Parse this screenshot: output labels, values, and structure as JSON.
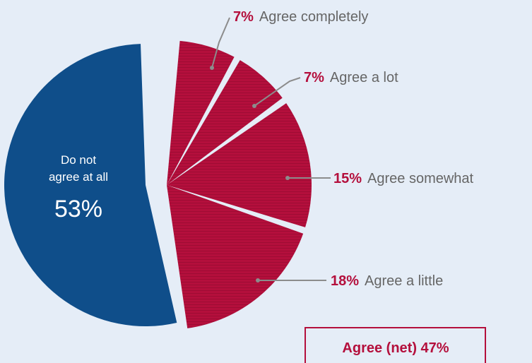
{
  "chart_data": {
    "type": "pie",
    "slices": [
      {
        "label": "Do not agree at all",
        "label_line1": "Do not",
        "label_line2": "agree at all",
        "value": 53,
        "value_text": "53%",
        "color": "#0f4e8a"
      },
      {
        "label": "Agree completely",
        "value": 7,
        "value_text": "7%",
        "color": "#b40f3c"
      },
      {
        "label": "Agree a lot",
        "value": 7,
        "value_text": "7%",
        "color": "#b40f3c"
      },
      {
        "label": "Agree somewhat",
        "value": 15,
        "value_text": "15%",
        "color": "#b40f3c"
      },
      {
        "label": "Agree a little",
        "value": 18,
        "value_text": "18%",
        "color": "#b40f3c"
      }
    ],
    "net": {
      "text": "Agree (net) 47%",
      "label": "Agree (net)",
      "value": 47
    }
  },
  "colors": {
    "background": "#e5edf7",
    "disagree": "#0f4e8a",
    "agree": "#b40f3c",
    "agree_stripe": "#9e0c34",
    "label_text": "#666666",
    "leader_line": "#8c8c8c"
  }
}
